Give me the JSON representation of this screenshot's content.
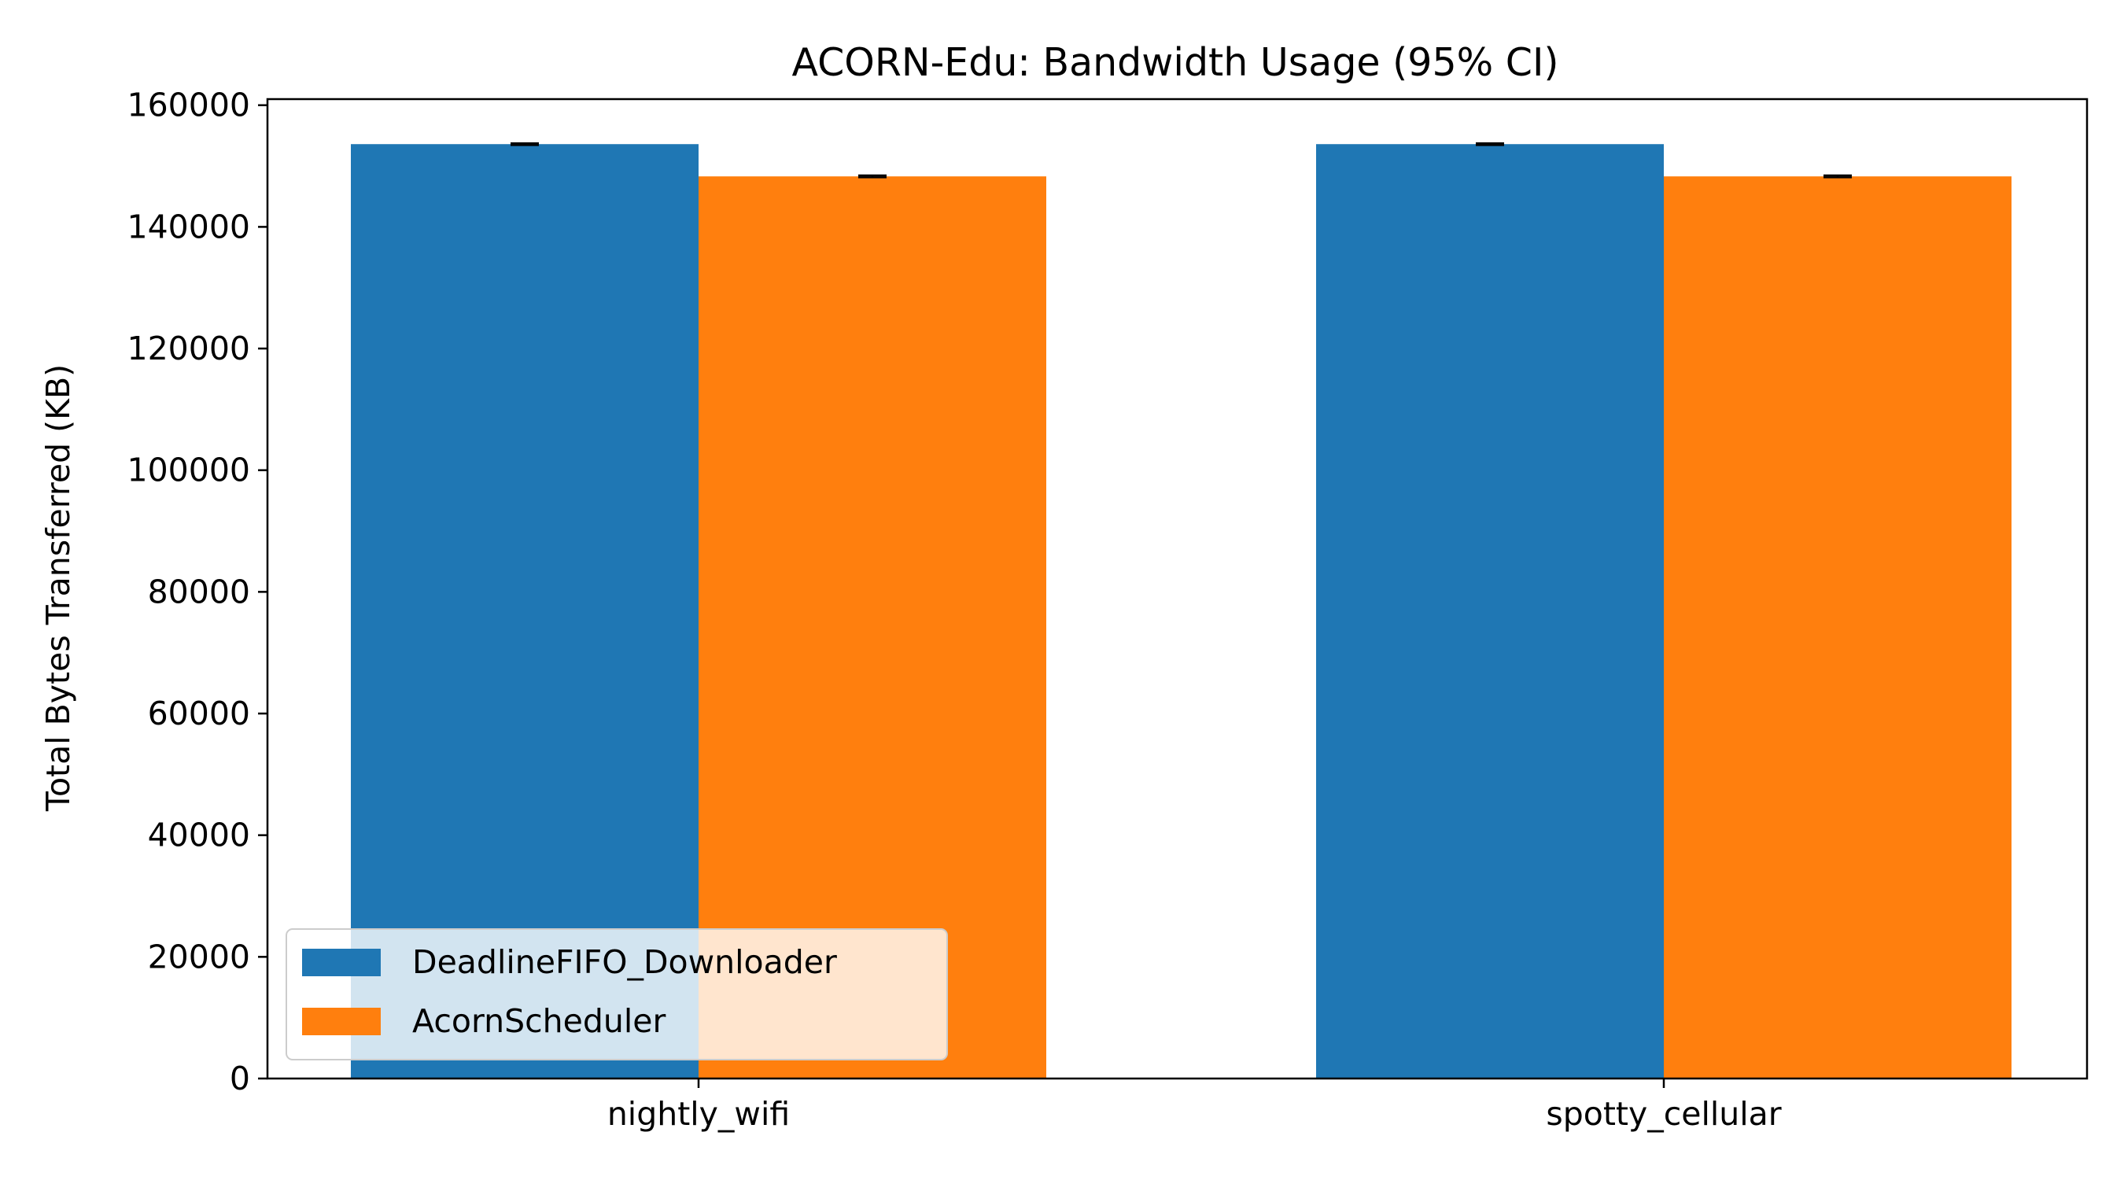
{
  "chart_data": {
    "type": "bar",
    "title": "ACORN-Edu: Bandwidth Usage (95% CI)",
    "xlabel": "",
    "ylabel": "Total Bytes Transferred (KB)",
    "categories": [
      "nightly_wifi",
      "spotty_cellular"
    ],
    "series": [
      {
        "name": "DeadlineFIFO_Downloader",
        "color": "#1f77b4",
        "values": [
          153600,
          153600
        ],
        "ci": [
          150,
          150
        ]
      },
      {
        "name": "AcornScheduler",
        "color": "#ff7f0e",
        "values": [
          148300,
          148300
        ],
        "ci": [
          150,
          150
        ]
      }
    ],
    "ylim": [
      0,
      161000
    ],
    "yticks": [
      0,
      20000,
      40000,
      60000,
      80000,
      100000,
      120000,
      140000,
      160000
    ],
    "ytick_labels": [
      "0",
      "20000",
      "40000",
      "60000",
      "80000",
      "100000",
      "120000",
      "140000",
      "160000"
    ],
    "grid": false,
    "legend_position": "lower-left"
  }
}
